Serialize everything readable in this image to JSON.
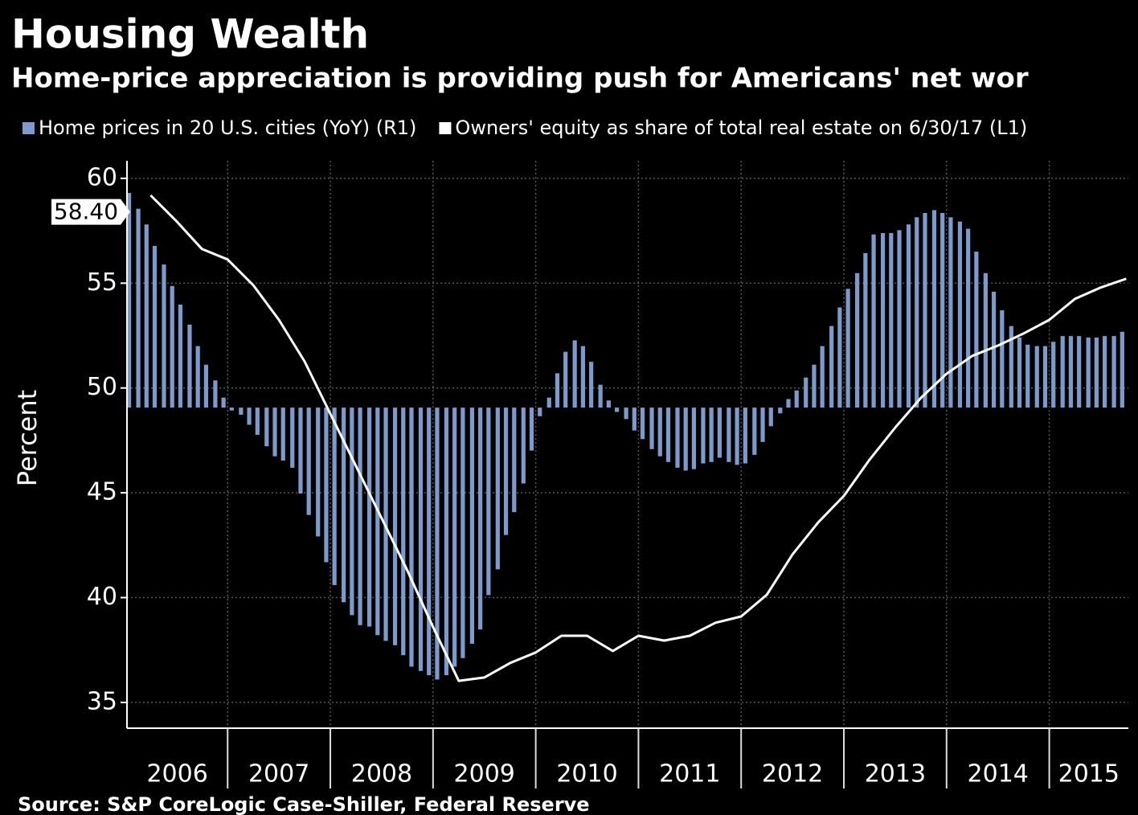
{
  "chart_data": {
    "type": "bar-line",
    "title": "Housing Wealth",
    "subtitle": "Home-price appreciation is providing push for Americans' net wor",
    "source": "Source: S&P CoreLogic Case-Shiller, Federal Reserve",
    "ylabel": "Percent",
    "categories": [
      "2006",
      "2007",
      "2008",
      "2009",
      "2010",
      "2011",
      "2012",
      "2013",
      "2014",
      "2015"
    ],
    "xlim": [
      2006.02,
      2015.77
    ],
    "xticks": [
      2007,
      2008,
      2009,
      2010,
      2011,
      2012,
      2013,
      2014,
      2015
    ],
    "ylim": [
      33.77,
      60.84
    ],
    "yticks": [
      35,
      40,
      45,
      50,
      55,
      60
    ],
    "y2lim": [
      -22.4,
      17.25
    ],
    "grid": true,
    "annotations": [
      {
        "value": 58.4,
        "label": "58.40"
      }
    ],
    "series": [
      {
        "name": "Home prices in 20 U.S. cities (YoY) (R1)",
        "color": "#7d9acb",
        "type": "bar",
        "axis": "y2",
        "x": [
          2006.04,
          2006.13,
          2006.21,
          2006.29,
          2006.38,
          2006.46,
          2006.54,
          2006.63,
          2006.71,
          2006.79,
          2006.88,
          2006.96,
          2007.04,
          2007.13,
          2007.21,
          2007.29,
          2007.38,
          2007.46,
          2007.54,
          2007.63,
          2007.71,
          2007.79,
          2007.88,
          2007.96,
          2008.04,
          2008.13,
          2008.21,
          2008.29,
          2008.38,
          2008.46,
          2008.54,
          2008.63,
          2008.71,
          2008.79,
          2008.88,
          2008.96,
          2009.04,
          2009.13,
          2009.21,
          2009.29,
          2009.38,
          2009.46,
          2009.54,
          2009.63,
          2009.71,
          2009.79,
          2009.88,
          2009.96,
          2010.04,
          2010.13,
          2010.21,
          2010.29,
          2010.38,
          2010.46,
          2010.54,
          2010.63,
          2010.71,
          2010.79,
          2010.88,
          2010.96,
          2011.04,
          2011.13,
          2011.21,
          2011.29,
          2011.38,
          2011.46,
          2011.54,
          2011.63,
          2011.71,
          2011.79,
          2011.88,
          2011.96,
          2012.04,
          2012.13,
          2012.21,
          2012.29,
          2012.38,
          2012.46,
          2012.54,
          2012.63,
          2012.71,
          2012.79,
          2012.88,
          2012.96,
          2013.04,
          2013.13,
          2013.21,
          2013.29,
          2013.38,
          2013.46,
          2013.54,
          2013.63,
          2013.71,
          2013.79,
          2013.88,
          2013.96,
          2014.04,
          2014.13,
          2014.21,
          2014.29,
          2014.38,
          2014.46,
          2014.54,
          2014.63,
          2014.71,
          2014.79,
          2014.88,
          2014.96,
          2015.04,
          2015.13,
          2015.21,
          2015.29,
          2015.38,
          2015.46,
          2015.54,
          2015.63,
          2015.71
        ],
        "values": [
          15,
          13.9,
          12.8,
          11.3,
          10,
          8.5,
          7.2,
          5.8,
          4.3,
          3,
          1.9,
          0.7,
          -0.2,
          -0.5,
          -1.2,
          -1.9,
          -2.7,
          -3.4,
          -3.7,
          -4.2,
          -6,
          -7.5,
          -9,
          -10.8,
          -12.4,
          -13.6,
          -14.5,
          -15.2,
          -15.3,
          -15.9,
          -16.3,
          -16.6,
          -17.3,
          -18.1,
          -18.4,
          -18.7,
          -19,
          -18.7,
          -18.1,
          -17.5,
          -16.5,
          -15.5,
          -13.1,
          -11.3,
          -8.9,
          -7.3,
          -5.3,
          -3,
          -0.6,
          0.7,
          2.4,
          3.9,
          4.7,
          4.3,
          3.2,
          1.6,
          0.5,
          -0.3,
          -0.8,
          -1.6,
          -2.2,
          -2.9,
          -3.4,
          -3.8,
          -4.2,
          -4.4,
          -4.3,
          -3.9,
          -3.8,
          -3.5,
          -3.8,
          -4,
          -3.9,
          -3.3,
          -2.4,
          -1.3,
          -0.4,
          0.6,
          1.2,
          2.1,
          3,
          4.3,
          5.7,
          7,
          8.3,
          9.4,
          10.8,
          12.1,
          12.2,
          12.2,
          12.4,
          12.8,
          13.3,
          13.6,
          13.8,
          13.6,
          13.3,
          13,
          12.5,
          10.9,
          9.4,
          8.1,
          6.8,
          5.7,
          4.9,
          4.4,
          4.3,
          4.3,
          4.6,
          5,
          5,
          5,
          4.9,
          4.9,
          5,
          5,
          5.3
        ]
      },
      {
        "name": "Owners' equity as share of total real estate on 6/30/17 (L1)",
        "color": "#ffffff",
        "type": "line",
        "x": [
          2006.25,
          2006.5,
          2006.75,
          2007,
          2007.25,
          2007.5,
          2007.75,
          2008,
          2008.25,
          2008.5,
          2008.75,
          2009,
          2009.25,
          2009.5,
          2009.75,
          2010,
          2010.25,
          2010.5,
          2010.75,
          2011,
          2011.25,
          2011.5,
          2011.75,
          2012,
          2012.25,
          2012.5,
          2012.75,
          2013,
          2013.25,
          2013.5,
          2013.75,
          2014,
          2014.25,
          2014.5,
          2014.75,
          2015,
          2015.25,
          2015.5,
          2015.75
        ],
        "values": [
          59.19,
          57.97,
          56.63,
          56.13,
          54.9,
          53.25,
          51.26,
          48.77,
          46.27,
          43.78,
          41.29,
          38.6,
          36.03,
          36.19,
          36.88,
          37.38,
          38.18,
          38.18,
          37.45,
          38.18,
          37.95,
          38.18,
          38.8,
          39.1,
          40.14,
          42.06,
          43.59,
          44.85,
          46.58,
          48.11,
          49.53,
          50.68,
          51.53,
          52.02,
          52.6,
          53.25,
          54.25,
          54.79,
          55.21
        ]
      }
    ]
  }
}
